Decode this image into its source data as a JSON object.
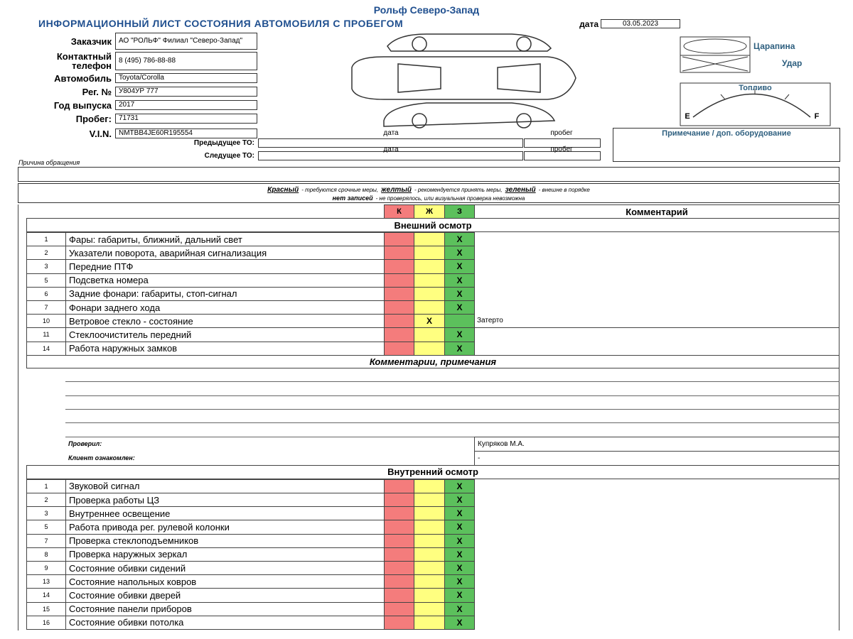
{
  "header": {
    "company": "Рольф Северо-Запад",
    "title": "ИНФОРМАЦИОННЫЙ ЛИСТ СОСТОЯНИЯ АВТОМОБИЛЯ С ПРОБЕГОМ",
    "date_label": "дата",
    "date": "03.05.2023"
  },
  "fields": [
    {
      "label": "Заказчик",
      "value": "АО \"РОЛЬФ\" Филиал \"Северо-Запад\""
    },
    {
      "label": "Контактный телефон",
      "value": "8 (495) 786-88-88"
    },
    {
      "label": "Автомобиль",
      "value": "Toyota/Corolla"
    },
    {
      "label": "Рег. №",
      "value": "У804УР 777"
    },
    {
      "label": "Год выпуска",
      "value": "2017"
    },
    {
      "label": "Пробег:",
      "value": "71731"
    },
    {
      "label": "V.I.N.",
      "value": "NMTBB4JE60R195554"
    }
  ],
  "damage_legend": {
    "scratch": "Царапина",
    "hit": "Удар"
  },
  "fuel": {
    "label": "Топливо",
    "empty": "E",
    "full": "F"
  },
  "note_label": "Примечание / доп. оборудование",
  "service": {
    "date_label": "дата",
    "mileage_label": "пробег",
    "previous": "Предыдущее ТО:",
    "next": "Следущее ТО:"
  },
  "reason_label": "Причина обращения",
  "key": {
    "red": "Красный",
    "red_text": "- требуются срочные меры,",
    "yellow": "желтый",
    "yellow_text": "- рекомендуется принять меры,",
    "green": "зеленый",
    "green_text": "- внешне в порядке",
    "none": "нет записей",
    "none_text": "- не проверялось, или визуальная проверка невозможна"
  },
  "table": {
    "columns": [
      "К",
      "Ж",
      "З"
    ],
    "comment_header": "Комментарий",
    "mark": "X",
    "colors": [
      "#f47c7c",
      "#ffff80",
      "#5cc05c"
    ]
  },
  "external": {
    "title": "Внешний осмотр",
    "rows": [
      {
        "num": 1,
        "name": "Фары: габариты, ближний, дальний свет",
        "status": "З"
      },
      {
        "num": 2,
        "name": "Указатели поворота, аварийная сигнализация",
        "status": "З"
      },
      {
        "num": 3,
        "name": "Передние ПТФ",
        "status": "З"
      },
      {
        "num": 5,
        "name": "Подсветка номера",
        "status": "З"
      },
      {
        "num": 6,
        "name": "Задние фонари: габариты, стоп-сигнал",
        "status": "З"
      },
      {
        "num": 7,
        "name": "Фонари заднего хода",
        "status": "З"
      },
      {
        "num": 10,
        "name": "Ветровое стекло - состояние",
        "status": "Ж",
        "comment": "Затерто"
      },
      {
        "num": 11,
        "name": "Стеклоочиститель передний",
        "status": "З"
      },
      {
        "num": 14,
        "name": "Работа наружных замков",
        "status": "З"
      }
    ]
  },
  "remarks": {
    "title": "Комментарии, примечания",
    "checked_label": "Проверил:",
    "checked_by": "Купряков М.А.",
    "client_label": "Клиент ознакомлен:",
    "client": "-"
  },
  "internal": {
    "title": "Внутренний осмотр",
    "rows": [
      {
        "num": 1,
        "name": "Звуковой сигнал",
        "status": "З"
      },
      {
        "num": 2,
        "name": "Проверка работы ЦЗ",
        "status": "З"
      },
      {
        "num": 3,
        "name": "Внутреннее освещение",
        "status": "З"
      },
      {
        "num": 5,
        "name": "Работа привода рег. рулевой колонки",
        "status": "З"
      },
      {
        "num": 7,
        "name": "Проверка стеклоподъемников",
        "status": "З"
      },
      {
        "num": 8,
        "name": "Проверка наружных зеркал",
        "status": "З"
      },
      {
        "num": 9,
        "name": "Состояние обивки сидений",
        "status": "З"
      },
      {
        "num": 13,
        "name": "Состояние напольных ковров",
        "status": "З"
      },
      {
        "num": 14,
        "name": "Состояние обивки дверей",
        "status": "З"
      },
      {
        "num": 15,
        "name": "Состояние панели приборов",
        "status": "З"
      },
      {
        "num": 16,
        "name": "Состояние обивки потолка",
        "status": "З"
      }
    ]
  }
}
